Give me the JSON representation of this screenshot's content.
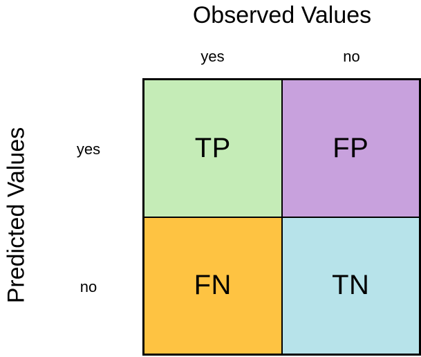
{
  "figure": {
    "title": "Observed Values",
    "y_axis_label": "Predicted Values",
    "background_color": "#ffffff",
    "border_color": "#000000",
    "text_color": "#000000"
  },
  "matrix": {
    "column_labels": [
      "yes",
      "no"
    ],
    "row_labels": [
      "yes",
      "no"
    ],
    "cells": [
      {
        "label": "TP",
        "color": "#c5ecb7"
      },
      {
        "label": "FP",
        "color": "#c8a1dd"
      },
      {
        "label": "FN",
        "color": "#fec342"
      },
      {
        "label": "TN",
        "color": "#b7e3ea"
      }
    ]
  }
}
